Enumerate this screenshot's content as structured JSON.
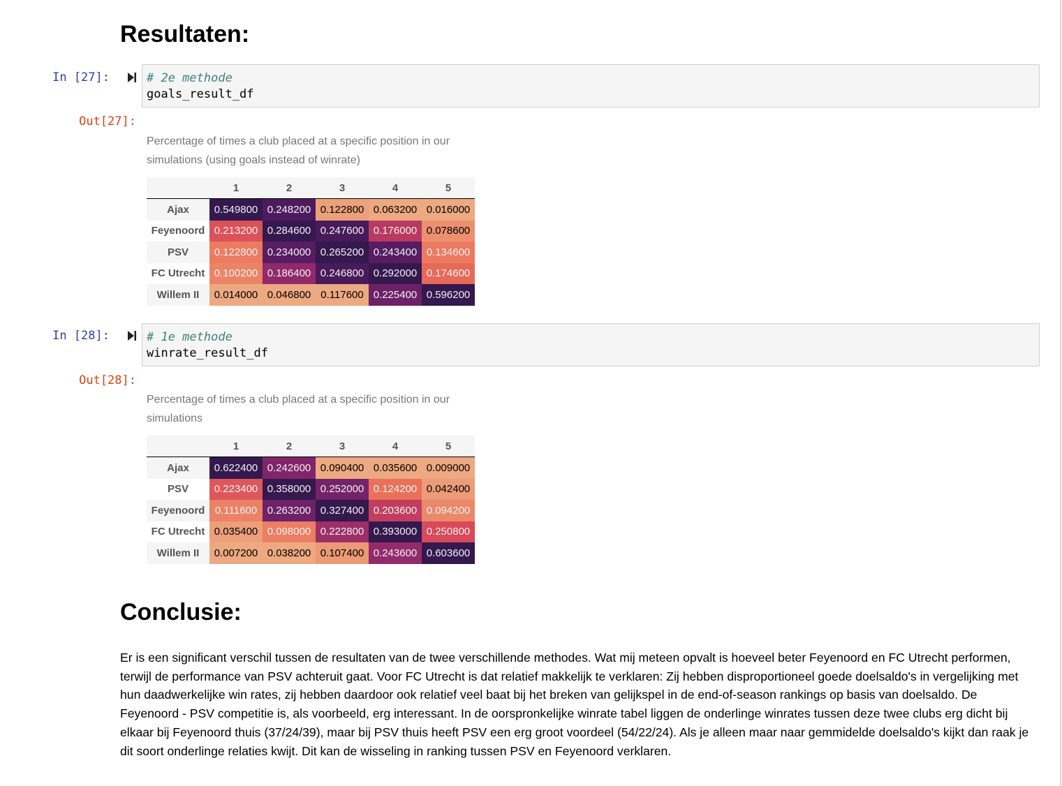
{
  "headings": {
    "results": "Resultaten:",
    "conclusion": "Conclusie:"
  },
  "cells": [
    {
      "in_prompt": "In [27]:",
      "out_prompt": "Out[27]:",
      "code_comment": "# 2e methode",
      "code_line": "goals_result_df",
      "caption": "Percentage of times a club placed at a specific position in our simulations (using goals instead of winrate)",
      "columns": [
        "1",
        "2",
        "3",
        "4",
        "5"
      ],
      "rows": [
        {
          "label": "Ajax",
          "values": [
            "0.549800",
            "0.248200",
            "0.122800",
            "0.063200",
            "0.016000"
          ]
        },
        {
          "label": "Feyenoord",
          "values": [
            "0.213200",
            "0.284600",
            "0.247600",
            "0.176000",
            "0.078600"
          ]
        },
        {
          "label": "PSV",
          "values": [
            "0.122800",
            "0.234000",
            "0.265200",
            "0.243400",
            "0.134600"
          ]
        },
        {
          "label": "FC Utrecht",
          "values": [
            "0.100200",
            "0.186400",
            "0.246800",
            "0.292000",
            "0.174600"
          ]
        },
        {
          "label": "Willem II",
          "values": [
            "0.014000",
            "0.046800",
            "0.117600",
            "0.225400",
            "0.596200"
          ]
        }
      ]
    },
    {
      "in_prompt": "In [28]:",
      "out_prompt": "Out[28]:",
      "code_comment": "# 1e methode",
      "code_line": "winrate_result_df",
      "caption": "Percentage of times a club placed at a specific position in our simulations",
      "columns": [
        "1",
        "2",
        "3",
        "4",
        "5"
      ],
      "rows": [
        {
          "label": "Ajax",
          "values": [
            "0.622400",
            "0.242600",
            "0.090400",
            "0.035600",
            "0.009000"
          ]
        },
        {
          "label": "PSV",
          "values": [
            "0.223400",
            "0.358000",
            "0.252000",
            "0.124200",
            "0.042400"
          ]
        },
        {
          "label": "Feyenoord",
          "values": [
            "0.111600",
            "0.263200",
            "0.327400",
            "0.203600",
            "0.094200"
          ]
        },
        {
          "label": "FC Utrecht",
          "values": [
            "0.035400",
            "0.098000",
            "0.222800",
            "0.393000",
            "0.250800"
          ]
        },
        {
          "label": "Willem II",
          "values": [
            "0.007200",
            "0.038200",
            "0.107400",
            "0.243600",
            "0.603600"
          ]
        }
      ]
    }
  ],
  "conclusion_text": "Er is een significant verschil tussen de resultaten van de twee verschillende methodes. Wat mij meteen opvalt is hoeveel beter Feyenoord en FC Utrecht performen, terwijl de performance van PSV achteruit gaat. Voor FC Utrecht is dat relatief makkelijk te verklaren: Zij hebben disproportioneel goede doelsaldo's in vergelijking met hun daadwerkelijke win rates, zij hebben daardoor ook relatief veel baat bij het breken van gelijkspel in de end-of-season rankings op basis van doelsaldo. De Feyenoord - PSV competitie is, als voorbeeld, erg interessant. In de oorspronkelijke winrate tabel liggen de onderlinge winrates tussen deze twee clubs erg dicht bij elkaar bij Feyenoord thuis (37/24/39), maar bij PSV thuis heeft PSV een erg groot voordeel (54/22/24). Als je alleen maar naar gemmidelde doelsaldo's kijkt dan raak je dit soort onderlinge relaties kwijt. Dit kan de wisseling in ranking tussen PSV en Feyenoord verklaren.",
  "colors": {
    "input_bg": "#f5f5f5",
    "in_prompt": "#303f9f",
    "out_prompt": "#d84315",
    "comment": "#408080",
    "heatmap_scale": "magma-style: low = #eda981 (peach), high = #3b1b52 (dark purple)"
  },
  "icons": {
    "run": "run-cell-icon"
  }
}
